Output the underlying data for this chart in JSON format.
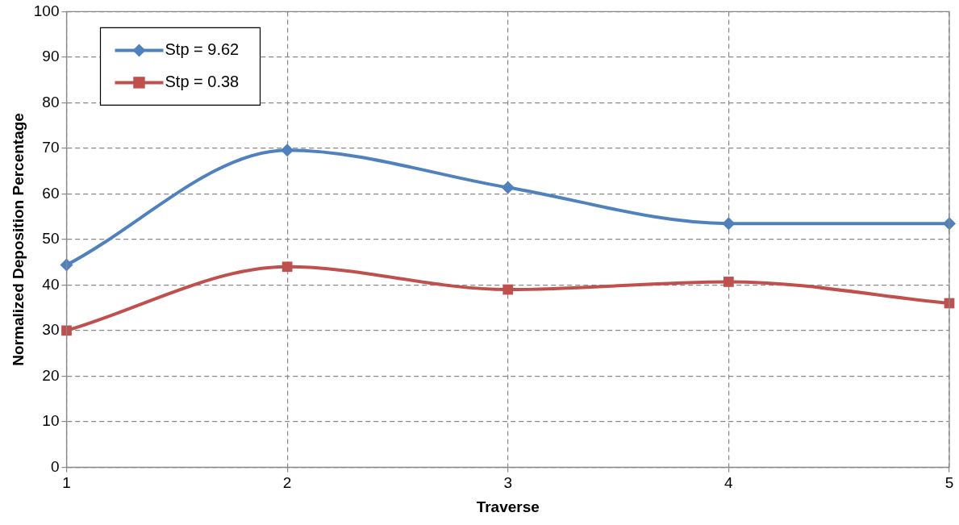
{
  "chart_data": {
    "type": "line",
    "xlabel": "Traverse",
    "ylabel": "Normalized Deposition Percentage",
    "x": [
      1,
      2,
      3,
      4,
      5
    ],
    "xlim": [
      1,
      5
    ],
    "xticks": [
      1,
      2,
      3,
      4,
      5
    ],
    "ylim": [
      0,
      100
    ],
    "yticks": [
      0,
      10,
      20,
      30,
      40,
      50,
      60,
      70,
      80,
      90,
      100
    ],
    "grid": true,
    "legend": "top left",
    "line_style": "solid",
    "series": [
      {
        "name": "Stp = 9.62",
        "color": "#4f81bd",
        "marker": "diamond",
        "values": [
          44.4,
          69.6,
          61.4,
          53.5,
          53.5
        ]
      },
      {
        "name": "Stp = 0.38",
        "color": "#c0504d",
        "marker": "square",
        "values": [
          30.0,
          44.0,
          39.0,
          40.7,
          36.0
        ]
      }
    ]
  }
}
